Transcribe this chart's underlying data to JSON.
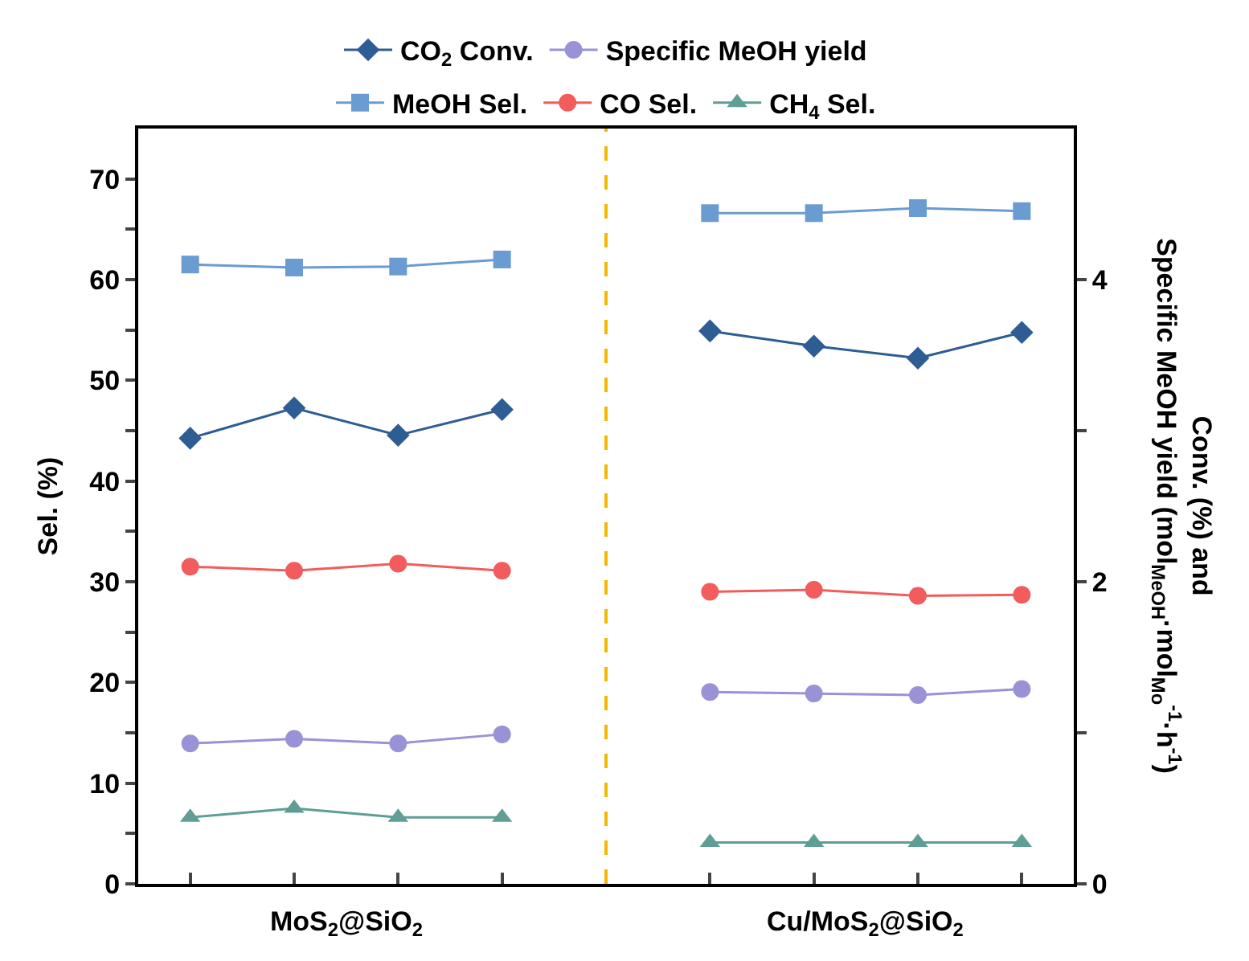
{
  "chart_data": {
    "type": "line",
    "ylabel": "Sel. (%)",
    "y2label": "Conv. (%) and\nSpecific MeOH yield (mol$_{MeOH}$·mol$_{Mo}$$^{-1}$·h$^{-1}$)",
    "categories": [
      null,
      null,
      null,
      null,
      null,
      null,
      null,
      null,
      null
    ],
    "series": [
      {
        "name": "CO$_{2}$ Conv.",
        "color": "#2e5d93",
        "marker": "diamond",
        "axis": "y2",
        "values": [
          2.95,
          3.15,
          2.97,
          3.14,
          null,
          3.66,
          3.56,
          3.48,
          3.65
        ]
      },
      {
        "name": "Specific MeOH yield",
        "color": "#9a92d6",
        "marker": "circle",
        "axis": "y2",
        "values": [
          0.93,
          0.96,
          0.93,
          0.99,
          null,
          1.27,
          1.26,
          1.25,
          1.29
        ]
      },
      {
        "name": "MeOH Sel.",
        "color": "#6a9bd1",
        "marker": "square",
        "values": [
          61.5,
          61.2,
          61.3,
          62.0,
          null,
          66.6,
          66.6,
          67.1,
          66.8
        ]
      },
      {
        "name": "CO Sel.",
        "color": "#f25c5c",
        "marker": "circle",
        "values": [
          31.5,
          31.1,
          31.8,
          31.1,
          null,
          29.0,
          29.2,
          28.6,
          28.7
        ]
      },
      {
        "name": "CH$_{4}$ Sel.",
        "color": "#5f9e94",
        "marker": "triangle",
        "values": [
          6.6,
          7.5,
          6.6,
          6.6,
          null,
          4.1,
          4.1,
          4.1,
          4.1
        ]
      }
    ],
    "ylim": [
      0,
      75
    ],
    "yticks": [
      0,
      {
        "value": 5,
        "label": null
      },
      10,
      {
        "value": 15,
        "label": null
      },
      20,
      {
        "value": 25,
        "label": null
      },
      30,
      {
        "value": 35,
        "label": null
      },
      40,
      {
        "value": 45,
        "label": null
      },
      50,
      {
        "value": 55,
        "label": null
      },
      60,
      {
        "value": 65,
        "label": null
      },
      70
    ],
    "y2lim": [
      0,
      5
    ],
    "y2ticks": [
      0,
      {
        "value": 1,
        "label": null
      },
      2,
      {
        "value": 3,
        "label": null
      },
      4
    ],
    "annotations": [
      "MoS$_{2}$@SiO$_{2}$",
      "Cu/MoS$_{2}$@SiO$_{2}$"
    ],
    "legend": "top",
    "line_style": "solid"
  }
}
